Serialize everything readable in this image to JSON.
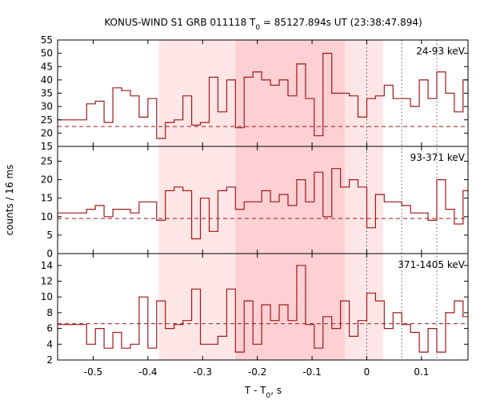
{
  "chart_data": {
    "type": "step",
    "title": {
      "main": "KONUS-WIND S1 GRB 011118 T",
      "sub": "0",
      "rest": " = 85127.894s UT (23:38:47.894)"
    },
    "xlabel": {
      "main": "T - T",
      "sub": "0",
      "rest": ", s"
    },
    "ylabel": "counts / 16 ms",
    "xlim": [
      -0.565,
      0.185
    ],
    "x_ticks": [
      -0.5,
      -0.4,
      -0.3,
      -0.2,
      -0.1,
      0,
      0.1
    ],
    "x_tick_labels": [
      "-0.5",
      "-0.4",
      "-0.3",
      "-0.2",
      "-0.1",
      "0",
      "0.1"
    ],
    "shaded_regions": [
      {
        "x0": -0.38,
        "x1": 0.03,
        "color": "#ffe6e6"
      },
      {
        "x0": -0.24,
        "x1": -0.04,
        "color": "#fdd0d4"
      }
    ],
    "vertical_lines": [
      0.0,
      0.064,
      0.128
    ],
    "line_color": "#a01818",
    "panels": [
      {
        "label": "24-93 keV",
        "ylim": [
          15,
          55
        ],
        "y_ticks": [
          15,
          20,
          25,
          30,
          35,
          40,
          45,
          50,
          55
        ],
        "background": 22.5,
        "x": [
          -0.565,
          -0.512,
          -0.496,
          -0.48,
          -0.464,
          -0.448,
          -0.432,
          -0.416,
          -0.4,
          -0.384,
          -0.368,
          -0.352,
          -0.336,
          -0.32,
          -0.304,
          -0.288,
          -0.272,
          -0.256,
          -0.24,
          -0.224,
          -0.208,
          -0.192,
          -0.176,
          -0.16,
          -0.144,
          -0.128,
          -0.112,
          -0.096,
          -0.08,
          -0.064,
          -0.048,
          -0.032,
          -0.016,
          0.0,
          0.016,
          0.032,
          0.048,
          0.064,
          0.08,
          0.096,
          0.112,
          0.128,
          0.144,
          0.16,
          0.176
        ],
        "y": [
          25,
          31,
          32,
          24,
          37,
          36,
          34,
          26,
          33,
          18,
          24,
          25,
          34,
          23,
          24,
          41,
          28,
          40,
          22,
          41,
          43,
          40,
          38,
          40,
          34,
          46,
          33,
          19,
          50,
          35,
          35,
          34,
          26,
          33,
          34,
          38,
          33,
          33,
          30,
          40,
          33,
          43,
          35,
          28,
          40
        ]
      },
      {
        "label": "93-371 keV",
        "ylim": [
          0,
          29
        ],
        "y_ticks": [
          0,
          5,
          10,
          15,
          20,
          25
        ],
        "background": 9.5,
        "x": [
          -0.565,
          -0.512,
          -0.496,
          -0.48,
          -0.464,
          -0.448,
          -0.432,
          -0.416,
          -0.4,
          -0.384,
          -0.368,
          -0.352,
          -0.336,
          -0.32,
          -0.304,
          -0.288,
          -0.272,
          -0.256,
          -0.24,
          -0.224,
          -0.208,
          -0.192,
          -0.176,
          -0.16,
          -0.144,
          -0.128,
          -0.112,
          -0.096,
          -0.08,
          -0.064,
          -0.048,
          -0.032,
          -0.016,
          0.0,
          0.016,
          0.032,
          0.048,
          0.064,
          0.08,
          0.096,
          0.112,
          0.128,
          0.144,
          0.16,
          0.176
        ],
        "y": [
          11,
          12,
          13,
          10,
          12,
          12,
          11,
          14,
          14,
          9,
          17,
          18,
          17,
          4,
          15,
          6,
          17,
          18,
          12,
          14,
          14,
          17,
          14,
          16,
          13,
          20,
          14,
          22,
          10,
          23,
          18,
          20,
          18,
          7,
          16,
          14,
          14,
          13,
          11,
          11,
          9,
          20,
          12,
          8,
          17
        ]
      },
      {
        "label": "371-1405 keV",
        "ylim": [
          2,
          15.5
        ],
        "y_ticks": [
          2,
          4,
          6,
          8,
          10,
          12,
          14
        ],
        "background": 6.6,
        "x": [
          -0.565,
          -0.512,
          -0.496,
          -0.48,
          -0.464,
          -0.448,
          -0.432,
          -0.416,
          -0.4,
          -0.384,
          -0.368,
          -0.352,
          -0.336,
          -0.32,
          -0.304,
          -0.288,
          -0.272,
          -0.256,
          -0.24,
          -0.224,
          -0.208,
          -0.192,
          -0.176,
          -0.16,
          -0.144,
          -0.128,
          -0.112,
          -0.096,
          -0.08,
          -0.064,
          -0.048,
          -0.032,
          -0.016,
          0.0,
          0.016,
          0.032,
          0.048,
          0.064,
          0.08,
          0.096,
          0.112,
          0.128,
          0.144,
          0.16,
          0.176
        ],
        "y": [
          6.5,
          4,
          6,
          3.5,
          5.5,
          3.5,
          4,
          10,
          3.5,
          9.5,
          6,
          6.5,
          7,
          11,
          4,
          4,
          5,
          11,
          3,
          9.5,
          4,
          9,
          7,
          9,
          7,
          14,
          6.5,
          3.5,
          7.5,
          6,
          9.5,
          5,
          7,
          10.5,
          9.5,
          6,
          8,
          6.5,
          5.5,
          3,
          6,
          3,
          8,
          9.5,
          7.5
        ]
      }
    ]
  }
}
